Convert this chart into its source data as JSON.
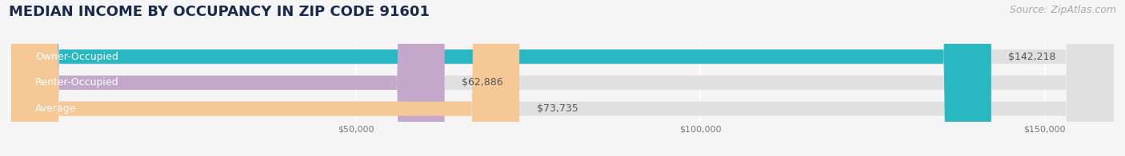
{
  "title": "MEDIAN INCOME BY OCCUPANCY IN ZIP CODE 91601",
  "source": "Source: ZipAtlas.com",
  "categories": [
    "Owner-Occupied",
    "Renter-Occupied",
    "Average"
  ],
  "values": [
    142218,
    62886,
    73735
  ],
  "bar_colors": [
    "#29b8c2",
    "#c4a8cc",
    "#f5c896"
  ],
  "value_labels": [
    "$142,218",
    "$62,886",
    "$73,735"
  ],
  "xlim": [
    0,
    160000
  ],
  "xticks": [
    50000,
    100000,
    150000
  ],
  "xticklabels": [
    "$50,000",
    "$100,000",
    "$150,000"
  ],
  "title_color": "#1a2a4a",
  "title_fontsize": 13,
  "source_color": "#aaaaaa",
  "source_fontsize": 9,
  "value_label_fontsize": 9,
  "category_label_fontsize": 9,
  "background_color": "#f5f5f5",
  "bar_background_color": "#e0e0e0",
  "bar_height": 0.55
}
